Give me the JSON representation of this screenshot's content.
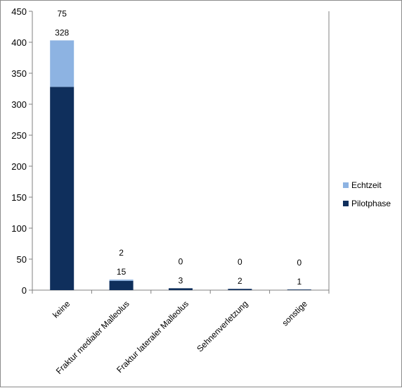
{
  "chart_data": {
    "type": "bar",
    "stacked": true,
    "categories": [
      "keine",
      "Fraktur medialer Malleolus",
      "Fraktur lateraler Malleolus",
      "Sehnenverletzung",
      "sonstige"
    ],
    "series": [
      {
        "name": "Pilotphase",
        "values": [
          328,
          15,
          3,
          2,
          1
        ],
        "color": "#0f2f5c",
        "labels": [
          "328",
          "15",
          "3",
          "2",
          "1"
        ]
      },
      {
        "name": "Echtzeit",
        "values": [
          75,
          2,
          0,
          0,
          0
        ],
        "color": "#8db3e2",
        "labels": [
          "75",
          "2",
          "0",
          "0",
          "0"
        ]
      }
    ],
    "title": "",
    "xlabel": "",
    "ylabel": "",
    "ylim": [
      0,
      450
    ],
    "yticks": [
      0,
      50,
      100,
      150,
      200,
      250,
      300,
      350,
      400,
      450
    ],
    "ytick_labels": [
      "0",
      "50",
      "100",
      "150",
      "200",
      "250",
      "300",
      "350",
      "400",
      "450"
    ],
    "grid": false,
    "legend_position": "right",
    "legend_order": [
      "Echtzeit",
      "Pilotphase"
    ]
  }
}
